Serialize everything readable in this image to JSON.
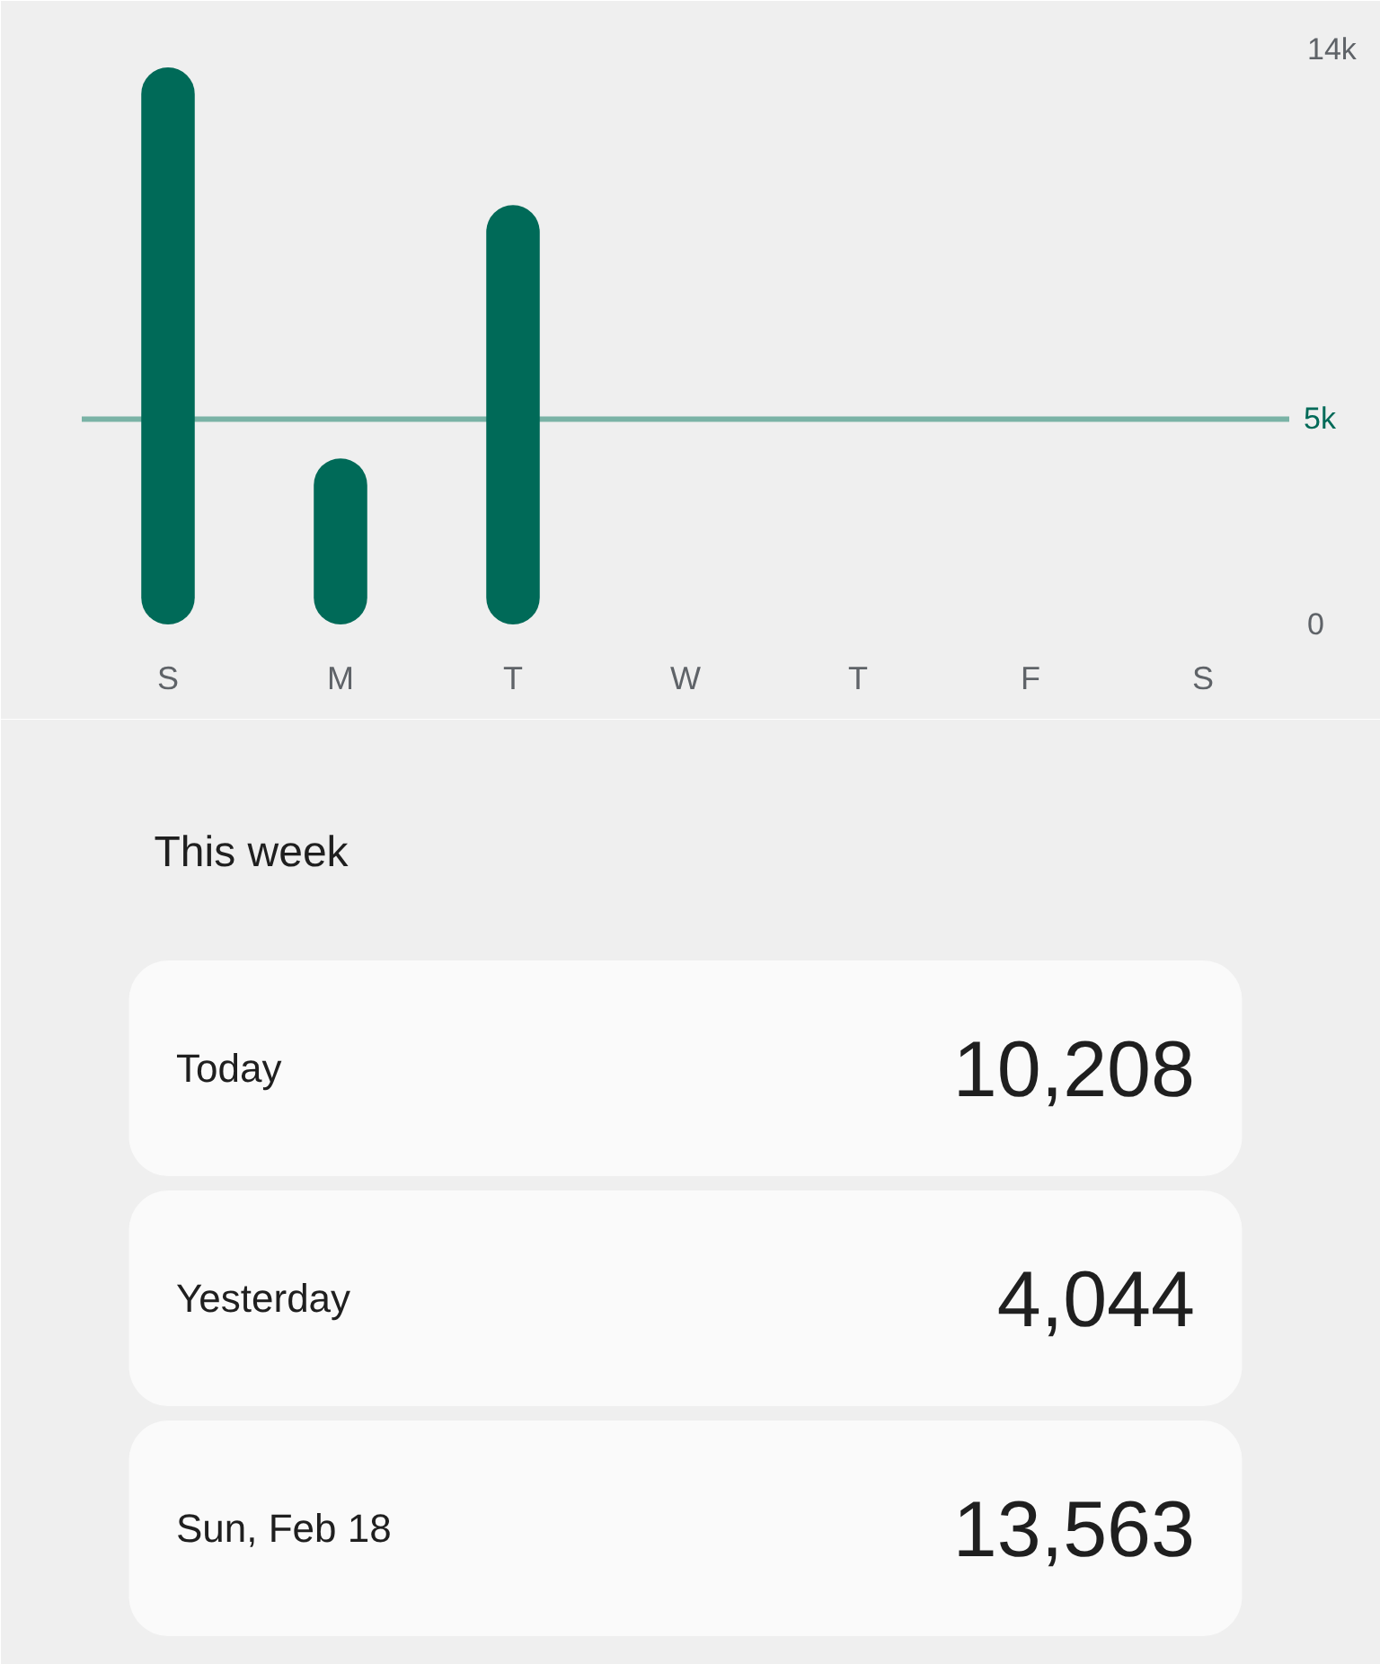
{
  "chart_data": [
    {
      "type": "bar",
      "categories": [
        "S",
        "M",
        "T",
        "W",
        "T",
        "F",
        "S"
      ],
      "values": [
        13563,
        4044,
        10208,
        null,
        null,
        null,
        null
      ],
      "color": "#006a58",
      "ylim": [
        0,
        14000
      ],
      "yticks": [
        0,
        {
          "value": 14000,
          "label": "14k"
        }
      ],
      "ref_lines": [
        {
          "axis": "y",
          "value": 5000,
          "label": "5k",
          "color": "#7ab3a6"
        }
      ]
    },
    {
      "type": "other",
      "title": "This week",
      "categories": [
        "Today",
        "Yesterday",
        "Sun, Feb 18"
      ],
      "values": [
        10208,
        4044,
        13563
      ],
      "value_labels": [
        "10,208",
        "4,044",
        "13,563"
      ]
    }
  ]
}
